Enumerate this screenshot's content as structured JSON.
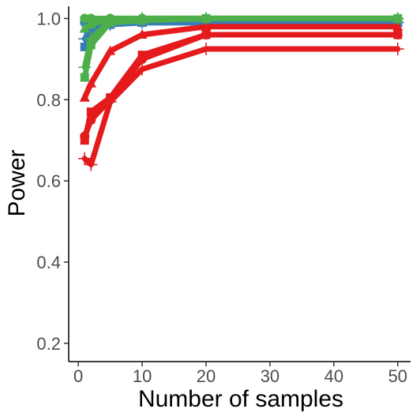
{
  "chart_data": {
    "type": "line",
    "xlabel": "Number of samples",
    "ylabel": "Power",
    "xlim": [
      -1.5,
      52
    ],
    "ylim": [
      0.155,
      1.03
    ],
    "xticks": [
      0,
      10,
      20,
      30,
      40,
      50
    ],
    "yticks": [
      0.2,
      0.4,
      0.6,
      0.8,
      1.0
    ],
    "xtick_labels": [
      "0",
      "10",
      "20",
      "30",
      "40",
      "50"
    ],
    "ytick_labels": [
      "0.2",
      "0.4",
      "0.6",
      "0.8",
      "1.0"
    ],
    "grid": false,
    "legend": "none",
    "series": [
      {
        "color": "#377EB8",
        "marker": "circle",
        "x": [
          1,
          2,
          5,
          10,
          20,
          50
        ],
        "y": [
          0.99,
          0.995,
          0.995,
          0.995,
          0.995,
          0.995
        ]
      },
      {
        "color": "#377EB8",
        "marker": "triangle",
        "x": [
          1,
          2,
          5,
          10,
          20,
          50
        ],
        "y": [
          0.975,
          0.985,
          0.99,
          0.99,
          0.99,
          0.99
        ]
      },
      {
        "color": "#377EB8",
        "marker": "square",
        "x": [
          1,
          2,
          5,
          10,
          20,
          50
        ],
        "y": [
          0.93,
          0.97,
          0.985,
          0.99,
          0.99,
          0.99
        ]
      },
      {
        "color": "#377EB8",
        "marker": "plus",
        "x": [
          1,
          2,
          5,
          10,
          20,
          50
        ],
        "y": [
          0.95,
          0.975,
          0.985,
          0.99,
          0.99,
          0.99
        ]
      },
      {
        "color": "#E41A1C",
        "marker": "triangle",
        "x": [
          1,
          2,
          5,
          10,
          20,
          50
        ],
        "y": [
          0.805,
          0.84,
          0.92,
          0.96,
          0.98,
          0.98
        ]
      },
      {
        "color": "#E41A1C",
        "marker": "square",
        "x": [
          1,
          2,
          5,
          10,
          20,
          50
        ],
        "y": [
          0.7,
          0.77,
          0.805,
          0.91,
          0.96,
          0.96
        ]
      },
      {
        "color": "#E41A1C",
        "marker": "circle",
        "x": [
          1,
          2,
          5,
          10,
          20,
          50
        ],
        "y": [
          0.71,
          0.75,
          0.8,
          0.9,
          0.96,
          0.96
        ]
      },
      {
        "color": "#E41A1C",
        "marker": "plus",
        "x": [
          1,
          2,
          5,
          10,
          20,
          50
        ],
        "y": [
          0.655,
          0.64,
          0.795,
          0.875,
          0.925,
          0.925
        ]
      },
      {
        "color": "#4DAF4A",
        "marker": "circle",
        "x": [
          1,
          2,
          5,
          10,
          20,
          50
        ],
        "y": [
          1.0,
          1.0,
          1.0,
          1.0,
          1.0,
          1.0
        ]
      },
      {
        "color": "#4DAF4A",
        "marker": "triangle",
        "x": [
          1,
          2,
          5,
          10,
          20,
          50
        ],
        "y": [
          0.975,
          0.985,
          1.0,
          1.0,
          1.0,
          1.0
        ]
      },
      {
        "color": "#4DAF4A",
        "marker": "plus",
        "x": [
          1,
          2,
          5,
          10,
          20,
          50
        ],
        "y": [
          0.88,
          0.95,
          0.995,
          1.0,
          1.0,
          1.0
        ]
      },
      {
        "color": "#4DAF4A",
        "marker": "square",
        "x": [
          1,
          2,
          5,
          10,
          20,
          50
        ],
        "y": [
          0.855,
          0.935,
          0.99,
          0.995,
          1.0,
          1.0
        ]
      }
    ]
  }
}
